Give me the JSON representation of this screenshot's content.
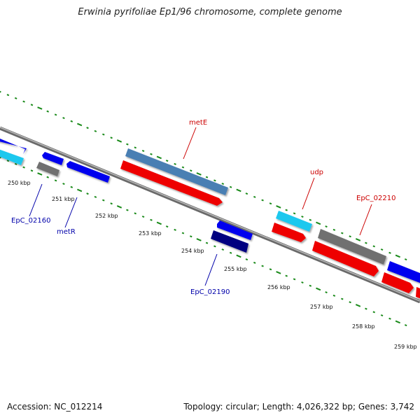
{
  "title": "Erwinia pyrifoliae Ep1/96 chromosome, complete genome",
  "footer": {
    "accession": "Accession: NC_012214",
    "topology": "Topology: circular; Length: 4,026,322 bp; Genes: 3,742"
  },
  "colors": {
    "red": "#ff0000",
    "blue": "#0000ff",
    "cyan": "#1ec8ee",
    "steelblue": "#4a7fb3",
    "gray": "#6f6f6f",
    "navy": "#000080",
    "tick_green": "#1a8a1a",
    "label_red": "#cc0000",
    "label_blue": "#0000aa",
    "backbone": "#8a8a8a"
  },
  "ticks": [
    "250 kbp",
    "251 kbp",
    "252 kbp",
    "253 kbp",
    "254 kbp",
    "255 kbp",
    "256 kbp",
    "257 kbp",
    "258 kbp",
    "259 kbp"
  ],
  "gene_labels": [
    {
      "id": "metE",
      "text": "metE",
      "color": "red"
    },
    {
      "id": "udp",
      "text": "udp",
      "color": "red"
    },
    {
      "id": "EpC_02210",
      "text": "EpC_02210",
      "color": "red"
    },
    {
      "id": "EpC_02160",
      "text": "EpC_02160",
      "color": "blue"
    },
    {
      "id": "metR",
      "text": "metR",
      "color": "blue"
    },
    {
      "id": "EpC_02190",
      "text": "EpC_02190",
      "color": "blue"
    }
  ]
}
